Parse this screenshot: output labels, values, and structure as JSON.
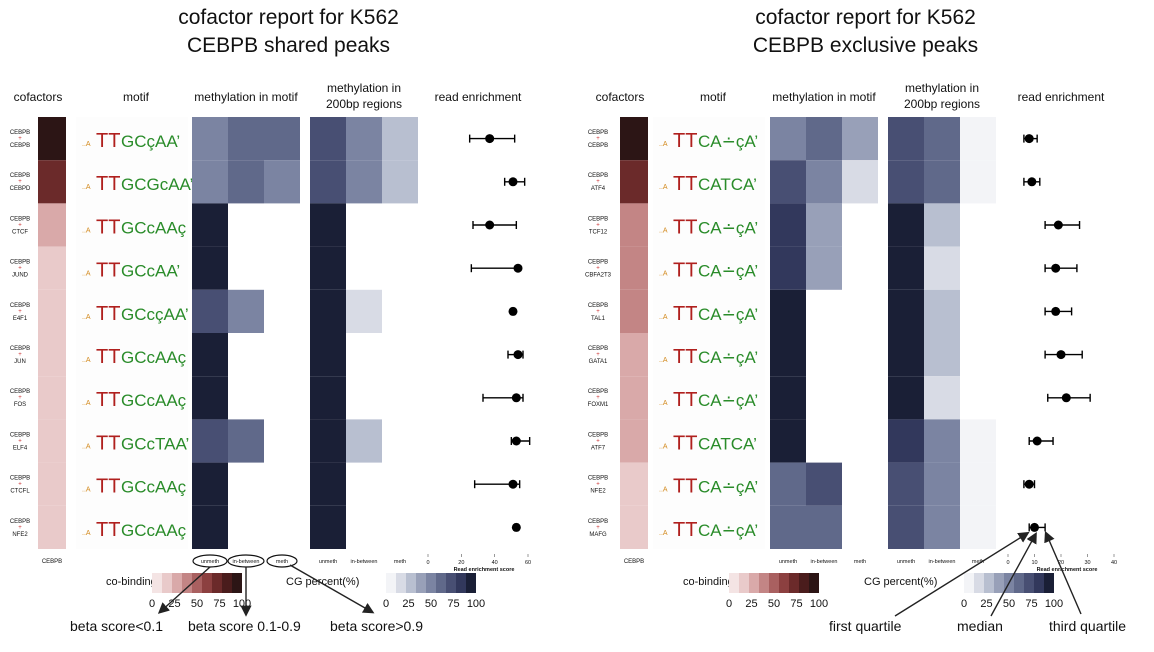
{
  "colors": {
    "cobinding_scale": [
      "#f4e4e4",
      "#e9caca",
      "#d9a9a9",
      "#c38585",
      "#a96060",
      "#8c4040",
      "#6b2a2a",
      "#4a1c1c",
      "#2c1515"
    ],
    "meth_scale": [
      "#f3f4f7",
      "#d8dbe5",
      "#b8bfd0",
      "#98a0b8",
      "#7b84a2",
      "#60698a",
      "#484f73",
      "#32385c",
      "#1a1f36"
    ],
    "dot": "#000000",
    "arrow": "#222222",
    "text": "#111111"
  },
  "column_headers": {
    "cofactors": "cofactors",
    "motif": "motif",
    "methylation_in_motif": "methylation in motif",
    "methylation_in_200bp_line1": "methylation in",
    "methylation_in_200bp_line2": "200bp regions",
    "read_enrichment": "read enrichment"
  },
  "meth_columns": [
    "unmeth",
    "in-between",
    "meth"
  ],
  "read_axis_label": "Read enrichment score",
  "legend": {
    "cobinding_title": "co-binding(%)",
    "cg_title": "CG percent(%)",
    "ticks": [
      "0",
      "25",
      "50",
      "75",
      "100"
    ]
  },
  "panels": [
    {
      "title_line1": "cofactor report for K562",
      "title_line2": "CEBPB shared peaks",
      "column_footer": "CEBPB",
      "read_ticks": [
        "0",
        "20",
        "40",
        "60"
      ],
      "read_axis_max": 60,
      "motif_variant": [
        "GCçAA’",
        "GCGcAA’",
        "GCcAAç",
        "GCcAA’",
        "GCcçAA’",
        "GCcAAç",
        "GCcAAç",
        "GCcTAA’",
        "GCcAAç",
        "GCcAAç"
      ],
      "rows": [
        {
          "partner": "CEBPB",
          "cobinding": 1.0,
          "motif_meth": [
            0.55,
            0.6,
            0.6
          ],
          "region_meth": [
            0.75,
            0.45,
            0.2
          ],
          "read": {
            "q1": 25,
            "median": 37,
            "q3": 52
          }
        },
        {
          "partner": "CEBPD",
          "cobinding": 0.7,
          "motif_meth": [
            0.5,
            0.6,
            0.55
          ],
          "region_meth": [
            0.72,
            0.55,
            0.3
          ],
          "read": {
            "q1": 46,
            "median": 51,
            "q3": 58
          }
        },
        {
          "partner": "CTCF",
          "cobinding": 0.25,
          "motif_meth": [
            1.0,
            null,
            null
          ],
          "region_meth": [
            1.0,
            null,
            null
          ],
          "read": {
            "q1": 27,
            "median": 37,
            "q3": 53
          }
        },
        {
          "partner": "JUND",
          "cobinding": 0.18,
          "motif_meth": [
            1.0,
            null,
            null
          ],
          "region_meth": [
            1.0,
            null,
            null
          ],
          "read": {
            "q1": 26,
            "median": 54,
            "q3": 54
          }
        },
        {
          "partner": "E4F1",
          "cobinding": 0.18,
          "motif_meth": [
            0.8,
            0.5,
            null
          ],
          "region_meth": [
            0.95,
            0.15,
            null
          ],
          "read": {
            "q1": 50,
            "median": 51,
            "q3": 52
          }
        },
        {
          "partner": "JUN",
          "cobinding": 0.15,
          "motif_meth": [
            1.0,
            null,
            null
          ],
          "region_meth": [
            1.0,
            null,
            null
          ],
          "read": {
            "q1": 48,
            "median": 54,
            "q3": 57
          }
        },
        {
          "partner": "FOS",
          "cobinding": 0.15,
          "motif_meth": [
            1.0,
            null,
            null
          ],
          "region_meth": [
            1.0,
            null,
            null
          ],
          "read": {
            "q1": 33,
            "median": 53,
            "q3": 57
          }
        },
        {
          "partner": "ELF4",
          "cobinding": 0.12,
          "motif_meth": [
            0.78,
            0.6,
            null
          ],
          "region_meth": [
            0.95,
            0.2,
            null
          ],
          "read": {
            "q1": 50,
            "median": 53,
            "q3": 61
          }
        },
        {
          "partner": "CTCFL",
          "cobinding": 0.12,
          "motif_meth": [
            1.0,
            null,
            null
          ],
          "region_meth": [
            1.0,
            null,
            null
          ],
          "read": {
            "q1": 28,
            "median": 51,
            "q3": 55
          }
        },
        {
          "partner": "NFE2",
          "cobinding": 0.12,
          "motif_meth": [
            1.0,
            null,
            null
          ],
          "region_meth": [
            1.0,
            null,
            null
          ],
          "read": {
            "q1": 52,
            "median": 53,
            "q3": 54
          }
        }
      ],
      "annotations": {
        "beta_low": "beta score<0.1",
        "beta_mid": "beta score 0.1-0.9",
        "beta_high": "beta score>0.9"
      }
    },
    {
      "title_line1": "cofactor report for K562",
      "title_line2": "CEBPB exclusive peaks",
      "column_footer": "CEBPB",
      "read_ticks": [
        "0",
        "10",
        "20",
        "30",
        "40"
      ],
      "read_axis_max": 40,
      "motif_variant": [
        "CA∸çA’",
        "CATCA’",
        "CA∸çA’",
        "CA∸çA’",
        "CA∸çA’",
        "CA∸çA’",
        "CA∸çA’",
        "CATCA’",
        "CA∸çA’",
        "CA∸çA’"
      ],
      "rows": [
        {
          "partner": "CEBPB",
          "cobinding": 1.0,
          "motif_meth": [
            0.55,
            0.6,
            0.42
          ],
          "region_meth": [
            0.75,
            0.6,
            0.05
          ],
          "read": {
            "q1": 6,
            "median": 8,
            "q3": 11
          }
        },
        {
          "partner": "ATF4",
          "cobinding": 0.7,
          "motif_meth": [
            0.8,
            0.45,
            0.15
          ],
          "region_meth": [
            0.75,
            0.6,
            0.03
          ],
          "read": {
            "q1": 6,
            "median": 9,
            "q3": 12
          }
        },
        {
          "partner": "TCF12",
          "cobinding": 0.42,
          "motif_meth": [
            0.9,
            0.35,
            null
          ],
          "region_meth": [
            1.0,
            0.2,
            null
          ],
          "read": {
            "q1": 14,
            "median": 19,
            "q3": 27
          }
        },
        {
          "partner": "CBFA2T3",
          "cobinding": 0.42,
          "motif_meth": [
            0.9,
            0.32,
            null
          ],
          "region_meth": [
            1.0,
            0.15,
            null
          ],
          "read": {
            "q1": 14,
            "median": 18,
            "q3": 26
          }
        },
        {
          "partner": "TAL1",
          "cobinding": 0.42,
          "motif_meth": [
            1.0,
            null,
            null
          ],
          "region_meth": [
            1.0,
            0.2,
            null
          ],
          "read": {
            "q1": 14,
            "median": 18,
            "q3": 24
          }
        },
        {
          "partner": "GATA1",
          "cobinding": 0.3,
          "motif_meth": [
            1.0,
            null,
            null
          ],
          "region_meth": [
            1.0,
            0.2,
            null
          ],
          "read": {
            "q1": 14,
            "median": 20,
            "q3": 28
          }
        },
        {
          "partner": "FOXM1",
          "cobinding": 0.2,
          "motif_meth": [
            1.0,
            null,
            null
          ],
          "region_meth": [
            1.0,
            0.15,
            null
          ],
          "read": {
            "q1": 15,
            "median": 22,
            "q3": 31
          }
        },
        {
          "partner": "ATF7",
          "cobinding": 0.2,
          "motif_meth": [
            1.0,
            null,
            null
          ],
          "region_meth": [
            0.85,
            0.45,
            0.02
          ],
          "read": {
            "q1": 8,
            "median": 11,
            "q3": 17
          }
        },
        {
          "partner": "NFE2",
          "cobinding": 0.18,
          "motif_meth": [
            0.62,
            0.75,
            null
          ],
          "region_meth": [
            0.75,
            0.55,
            0.02
          ],
          "read": {
            "q1": 6,
            "median": 8,
            "q3": 10
          }
        },
        {
          "partner": "MAFG",
          "cobinding": 0.15,
          "motif_meth": [
            0.6,
            0.6,
            null
          ],
          "region_meth": [
            0.75,
            0.55,
            0.03
          ],
          "read": {
            "q1": 8,
            "median": 10,
            "q3": 14
          }
        }
      ],
      "annotations": {
        "first_quartile": "first quartile",
        "median": "median",
        "third_quartile": "third quartile"
      }
    }
  ]
}
